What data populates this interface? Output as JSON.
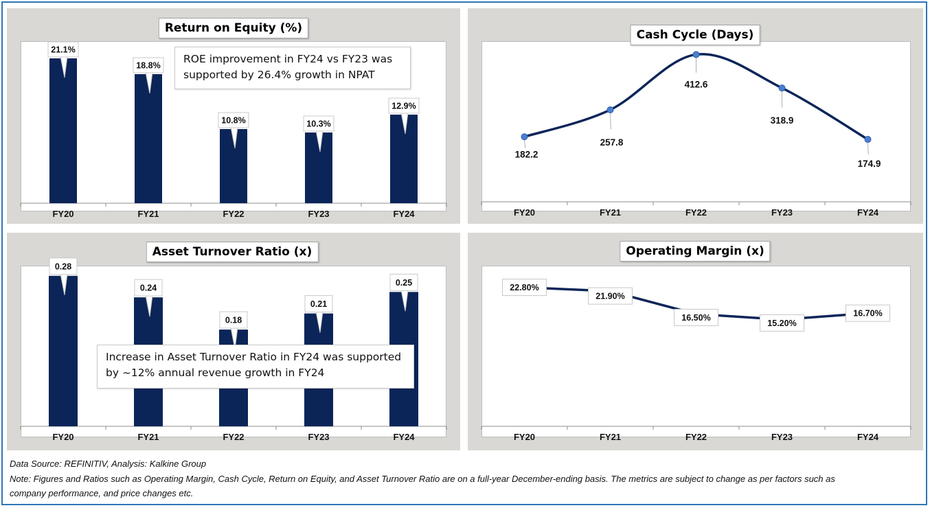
{
  "colors": {
    "bar": "#0b2559",
    "line": "#0b2559",
    "marker": "#4a7fd0",
    "panel_bg": "#d9d8d5",
    "border": "#2e75b6"
  },
  "chart_data": [
    {
      "type": "bar",
      "title": "Return on Equity (%)",
      "categories": [
        "FY20",
        "FY21",
        "FY22",
        "FY23",
        "FY24"
      ],
      "values": [
        21.1,
        18.8,
        10.8,
        10.3,
        12.9
      ],
      "value_labels": [
        "21.1%",
        "18.8%",
        "10.8%",
        "10.3%",
        "12.9%"
      ],
      "ylim": [
        0,
        22
      ],
      "annotation": "ROE improvement in FY24 vs FY23 was supported by 26.4% growth in NPAT",
      "grid": false
    },
    {
      "type": "line",
      "title": "Cash Cycle (Days)",
      "categories": [
        "FY20",
        "FY21",
        "FY22",
        "FY23",
        "FY24"
      ],
      "values": [
        182.2,
        257.8,
        412.6,
        318.9,
        174.9
      ],
      "value_labels": [
        "182.2",
        "257.8",
        "412.6",
        "318.9",
        "174.9"
      ],
      "ylim": [
        0,
        450
      ],
      "grid": false
    },
    {
      "type": "bar",
      "title": "Asset Turnover Ratio (x)",
      "categories": [
        "FY20",
        "FY21",
        "FY22",
        "FY23",
        "FY24"
      ],
      "values": [
        0.28,
        0.24,
        0.18,
        0.21,
        0.25
      ],
      "value_labels": [
        "0.28",
        "0.24",
        "0.18",
        "0.21",
        "0.25"
      ],
      "ylim": [
        0,
        0.29
      ],
      "annotation": "Increase in Asset Turnover Ratio in FY24 was supported by ~12% annual revenue growth in FY24",
      "grid": false
    },
    {
      "type": "line",
      "title": "Operating Margin (x)",
      "categories": [
        "FY20",
        "FY21",
        "FY22",
        "FY23",
        "FY24"
      ],
      "values": [
        22.8,
        21.9,
        16.5,
        15.2,
        16.7
      ],
      "value_labels": [
        "22.80%",
        "21.90%",
        "16.50%",
        "15.20%",
        "16.70%"
      ],
      "ylim": [
        -10,
        25
      ],
      "grid": false
    }
  ],
  "footer": {
    "source": "Data Source: REFINITIV, Analysis: Kalkine Group",
    "note_line1": "Note: Figures and Ratios such as Operating Margin, Cash Cycle, Return on Equity, and Asset Turnover Ratio  are on a full-year December-ending basis. The metrics are subject to change as per factors such as",
    "note_line2": "company performance, and price changes etc."
  }
}
